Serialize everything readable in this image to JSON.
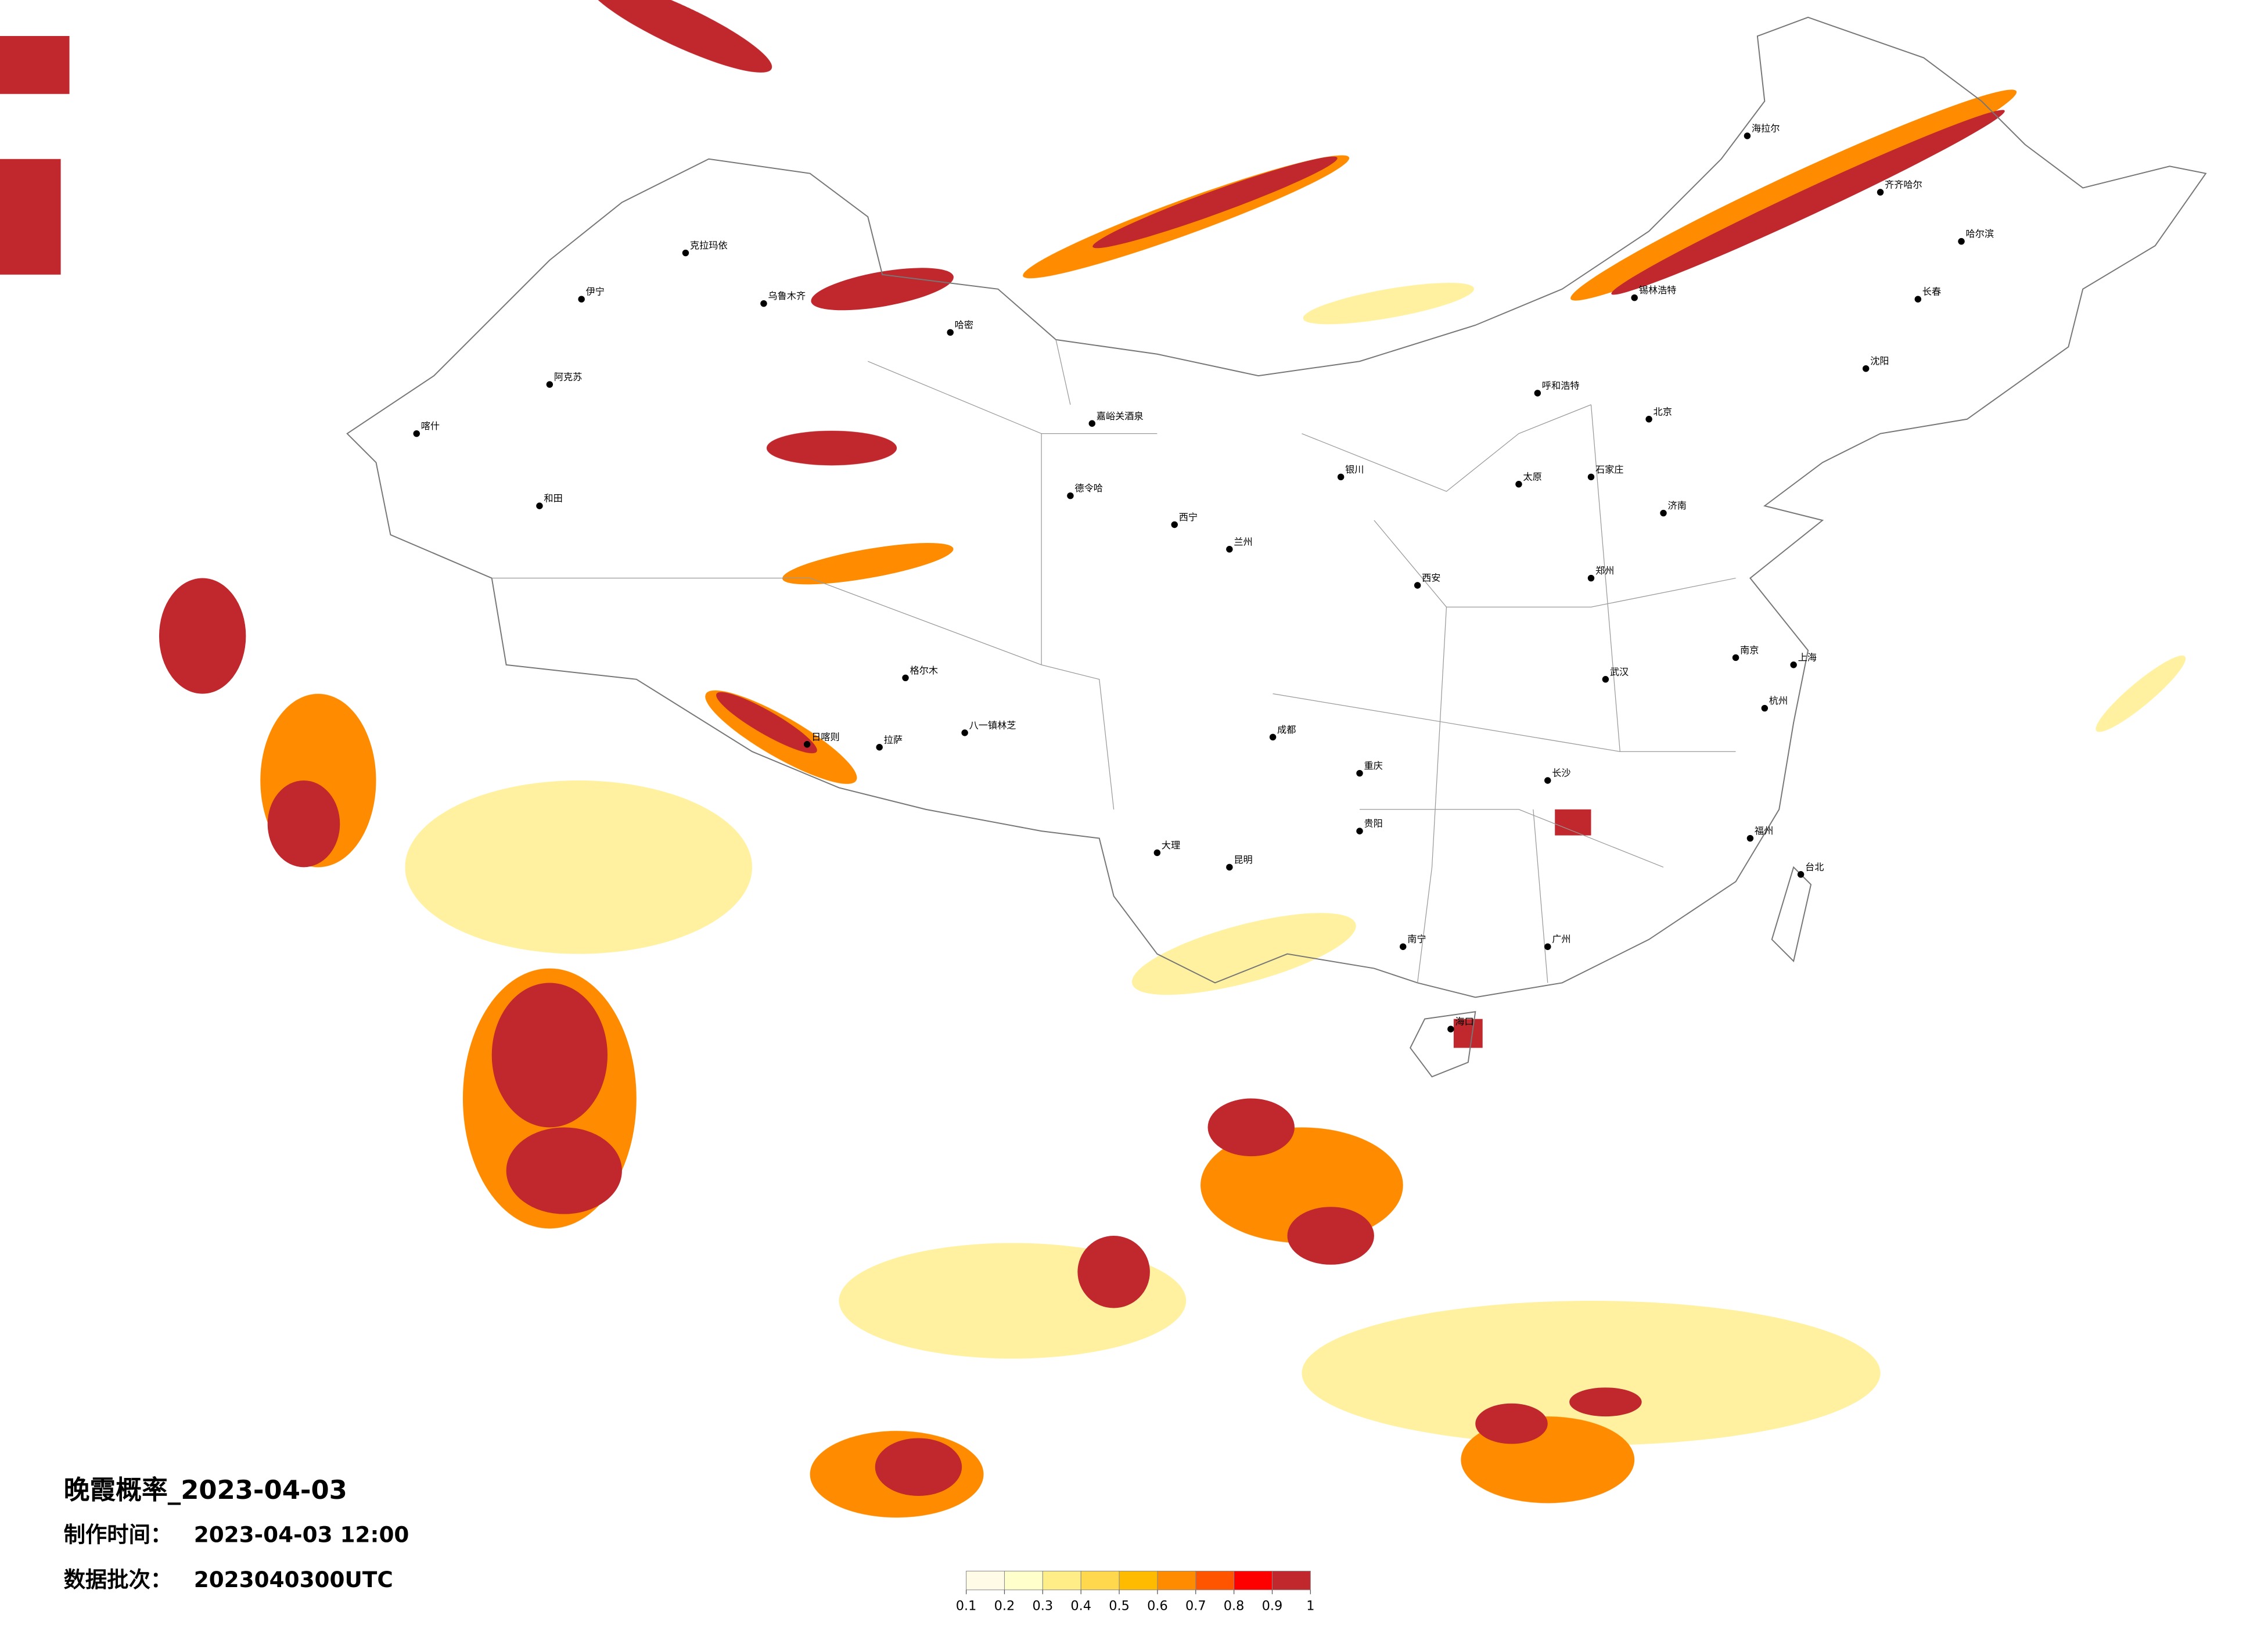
{
  "title": "晚霞概率_2023-04-03",
  "meta": [
    {
      "label": "制作时间：",
      "value": "2023-04-03 12:00"
    },
    {
      "label": "数据批次：",
      "value": "2023040300UTC"
    }
  ],
  "colorbar": {
    "ticks": [
      0.1,
      0.2,
      0.3,
      0.4,
      0.5,
      0.6,
      0.7,
      0.8,
      0.9,
      1
    ],
    "colors": [
      "#fffbe6",
      "#ffffcc",
      "#ffee88",
      "#ffd84d",
      "#ffbb00",
      "#ff8c00",
      "#ff5500",
      "#ff0000",
      "#c0282d"
    ]
  },
  "cities": [
    "克拉玛依",
    "伊宁",
    "阿克苏",
    "和田",
    "喀什",
    "乌鲁木齐",
    "哈密",
    "嘉峪关酒泉",
    "德令哈",
    "格尔木",
    "拉萨",
    "日喀则",
    "八一镇林芝",
    "呼和浩特",
    "哈尔滨",
    "齐齐哈尔",
    "海拉尔",
    "锡林浩特",
    "长春",
    "沈阳",
    "北京",
    "石家庄",
    "太原",
    "郑州",
    "西安",
    "兰州",
    "西宁",
    "银川",
    "成都",
    "重庆",
    "贵阳",
    "昆明",
    "大理",
    "南宁",
    "广州",
    "长沙",
    "武汉",
    "南京",
    "上海",
    "杭州",
    "福州",
    "台北",
    "海口",
    "济南"
  ]
}
